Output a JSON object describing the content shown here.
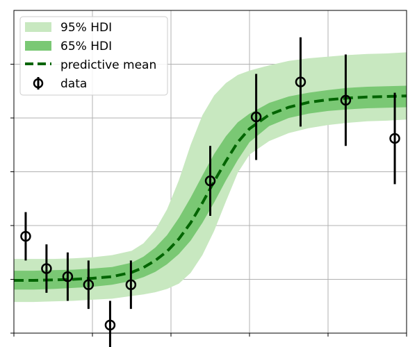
{
  "chart_data": {
    "type": "line",
    "title": "",
    "xlabel": "",
    "ylabel": "",
    "xlim": [
      0,
      10
    ],
    "ylim": [
      -1.5,
      4.5
    ],
    "xticks": [
      0,
      2,
      4,
      6,
      8,
      10
    ],
    "yticks": [
      -1.5,
      -0.5,
      0.5,
      1.5,
      2.5,
      3.5
    ],
    "grid": true,
    "tick_labels_shown": false,
    "legend_position": "top-left",
    "legend": [
      {
        "key": "hdi95",
        "label": "95% HDI"
      },
      {
        "key": "hdi65",
        "label": "65% HDI"
      },
      {
        "key": "mean",
        "label": "predictive mean"
      },
      {
        "key": "data",
        "label": "data"
      }
    ],
    "colors": {
      "hdi95": "#c8e8c0",
      "hdi65": "#7ac874",
      "mean": "#006400",
      "data": "#000000",
      "grid": "#b0b0b0"
    },
    "series": [
      {
        "key": "mean",
        "style": "dashed",
        "x": [
          0,
          0.5,
          1,
          1.5,
          2,
          2.5,
          3,
          3.3,
          3.6,
          3.9,
          4.2,
          4.5,
          4.8,
          5.1,
          5.4,
          5.7,
          6,
          6.5,
          7,
          7.5,
          8,
          8.5,
          9,
          9.5,
          10
        ],
        "y": [
          -0.52,
          -0.52,
          -0.51,
          -0.5,
          -0.48,
          -0.45,
          -0.37,
          -0.28,
          -0.15,
          0.02,
          0.25,
          0.55,
          0.92,
          1.32,
          1.7,
          2.05,
          2.3,
          2.56,
          2.7,
          2.79,
          2.84,
          2.87,
          2.89,
          2.9,
          2.91
        ]
      },
      {
        "key": "hdi65",
        "x": [
          0,
          0.5,
          1,
          1.5,
          2,
          2.5,
          3,
          3.3,
          3.6,
          3.9,
          4.2,
          4.5,
          4.8,
          5.1,
          5.4,
          5.7,
          6,
          6.5,
          7,
          7.5,
          8,
          8.5,
          9,
          9.5,
          10
        ],
        "lower": [
          -0.69,
          -0.69,
          -0.68,
          -0.66,
          -0.64,
          -0.6,
          -0.53,
          -0.46,
          -0.36,
          -0.22,
          -0.03,
          0.22,
          0.55,
          0.93,
          1.34,
          1.72,
          2.05,
          2.35,
          2.5,
          2.58,
          2.63,
          2.66,
          2.68,
          2.69,
          2.7
        ],
        "upper": [
          -0.34,
          -0.34,
          -0.33,
          -0.32,
          -0.3,
          -0.27,
          -0.19,
          -0.08,
          0.09,
          0.32,
          0.64,
          1.02,
          1.43,
          1.83,
          2.16,
          2.42,
          2.58,
          2.78,
          2.9,
          2.97,
          3.02,
          3.06,
          3.08,
          3.09,
          3.1
        ]
      },
      {
        "key": "hdi95",
        "x": [
          0,
          0.5,
          1,
          1.5,
          2,
          2.5,
          3,
          3.3,
          3.6,
          3.9,
          4.2,
          4.5,
          4.8,
          5.1,
          5.4,
          5.7,
          6,
          6.5,
          7,
          7.5,
          8,
          8.5,
          9,
          9.5,
          10
        ],
        "lower": [
          -0.92,
          -0.92,
          -0.91,
          -0.9,
          -0.88,
          -0.86,
          -0.81,
          -0.78,
          -0.74,
          -0.68,
          -0.58,
          -0.38,
          -0.05,
          0.4,
          0.95,
          1.48,
          1.82,
          2.07,
          2.22,
          2.31,
          2.37,
          2.41,
          2.44,
          2.45,
          2.47
        ],
        "upper": [
          -0.12,
          -0.12,
          -0.12,
          -0.11,
          -0.09,
          -0.05,
          0.03,
          0.17,
          0.42,
          0.8,
          1.34,
          2.0,
          2.55,
          2.92,
          3.15,
          3.3,
          3.38,
          3.48,
          3.56,
          3.61,
          3.64,
          3.67,
          3.69,
          3.7,
          3.72
        ]
      },
      {
        "key": "data",
        "x": [
          0.3,
          0.83,
          1.37,
          1.9,
          2.45,
          2.98,
          5.0,
          6.17,
          7.3,
          8.45,
          9.7
        ],
        "y": [
          0.3,
          -0.3,
          -0.45,
          -0.6,
          -1.35,
          -0.6,
          1.33,
          2.52,
          3.17,
          2.83,
          2.12
        ],
        "err": [
          0.45,
          0.45,
          0.45,
          0.45,
          0.45,
          0.45,
          0.65,
          0.8,
          0.83,
          0.85,
          0.85
        ]
      }
    ]
  }
}
